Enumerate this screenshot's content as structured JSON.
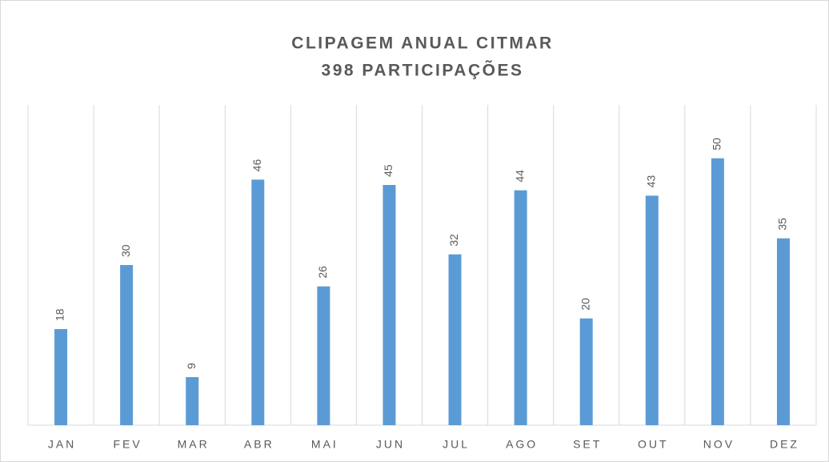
{
  "chart_data": {
    "type": "bar",
    "title": "CLIPAGEM ANUAL CITMAR",
    "subtitle": "398 PARTICIPAÇÕES",
    "categories": [
      "JAN",
      "FEV",
      "MAR",
      "ABR",
      "MAI",
      "JUN",
      "JUL",
      "AGO",
      "SET",
      "OUT",
      "NOV",
      "DEZ"
    ],
    "values": [
      18,
      30,
      9,
      46,
      26,
      45,
      32,
      44,
      20,
      43,
      50,
      35
    ],
    "color": "#5b9bd5",
    "ylim": [
      0,
      60
    ],
    "grid": true
  }
}
